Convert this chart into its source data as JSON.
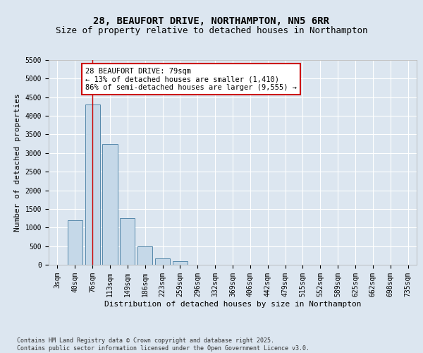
{
  "title": "28, BEAUFORT DRIVE, NORTHAMPTON, NN5 6RR",
  "subtitle": "Size of property relative to detached houses in Northampton",
  "xlabel": "Distribution of detached houses by size in Northampton",
  "ylabel": "Number of detached properties",
  "categories": [
    "3sqm",
    "40sqm",
    "76sqm",
    "113sqm",
    "149sqm",
    "186sqm",
    "223sqm",
    "259sqm",
    "296sqm",
    "332sqm",
    "369sqm",
    "406sqm",
    "442sqm",
    "479sqm",
    "515sqm",
    "552sqm",
    "589sqm",
    "625sqm",
    "662sqm",
    "698sqm",
    "735sqm"
  ],
  "values": [
    0,
    1200,
    4300,
    3250,
    1250,
    500,
    170,
    100,
    0,
    0,
    0,
    0,
    0,
    0,
    0,
    0,
    0,
    0,
    0,
    0,
    0
  ],
  "bar_color": "#c5d8e8",
  "bar_edge_color": "#5588aa",
  "vline_x_index": 2,
  "vline_color": "#cc0000",
  "annotation_text": "28 BEAUFORT DRIVE: 79sqm\n← 13% of detached houses are smaller (1,410)\n86% of semi-detached houses are larger (9,555) →",
  "annotation_box_color": "#ffffff",
  "annotation_box_edge": "#cc0000",
  "background_color": "#dce6f0",
  "plot_bg_color": "#dce6f0",
  "ylim": [
    0,
    5500
  ],
  "yticks": [
    0,
    500,
    1000,
    1500,
    2000,
    2500,
    3000,
    3500,
    4000,
    4500,
    5000,
    5500
  ],
  "footer": "Contains HM Land Registry data © Crown copyright and database right 2025.\nContains public sector information licensed under the Open Government Licence v3.0.",
  "title_fontsize": 10,
  "subtitle_fontsize": 9,
  "axis_label_fontsize": 8,
  "tick_fontsize": 7,
  "annotation_fontsize": 7.5,
  "footer_fontsize": 6
}
